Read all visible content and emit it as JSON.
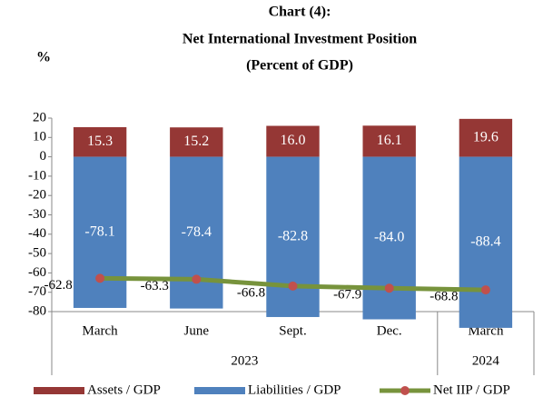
{
  "chart_data": {
    "type": "bar",
    "title": [
      "Chart (4):",
      "Net International Investment Position",
      "(Percent of GDP)"
    ],
    "y_label": "%",
    "categories": [
      "March",
      "June",
      "Sept.",
      "Dec.",
      "March"
    ],
    "category_groups": [
      "2023",
      "2023",
      "2023",
      "2023",
      "2024"
    ],
    "series": [
      {
        "name": "Assets / GDP",
        "type": "bar",
        "color": "#953735",
        "values": [
          15.3,
          15.2,
          16.0,
          16.1,
          19.6
        ],
        "value_labels": [
          "15.3",
          "15.2",
          "16.0",
          "16.1",
          "19.6"
        ]
      },
      {
        "name": "Liabilities / GDP",
        "type": "bar",
        "color": "#4f81bd",
        "values": [
          -78.1,
          -78.4,
          -82.8,
          -84.0,
          -88.4
        ],
        "value_labels": [
          "-78.1",
          "-78.4",
          "-82.8",
          "-84.0",
          "-88.4"
        ]
      },
      {
        "name": "Net IIP / GDP",
        "type": "line",
        "color": "#77933c",
        "marker_color": "#c0504d",
        "values": [
          -62.8,
          -63.3,
          -66.8,
          -67.9,
          -68.8
        ],
        "value_labels": [
          "-62.8",
          "-63.3",
          "-66.8",
          "-67.9",
          "-68.8"
        ]
      }
    ],
    "ylim": [
      -80,
      20
    ],
    "yticks": [
      20,
      10,
      0,
      -10,
      -20,
      -30,
      -40,
      -50,
      -60,
      -70,
      -80
    ]
  }
}
